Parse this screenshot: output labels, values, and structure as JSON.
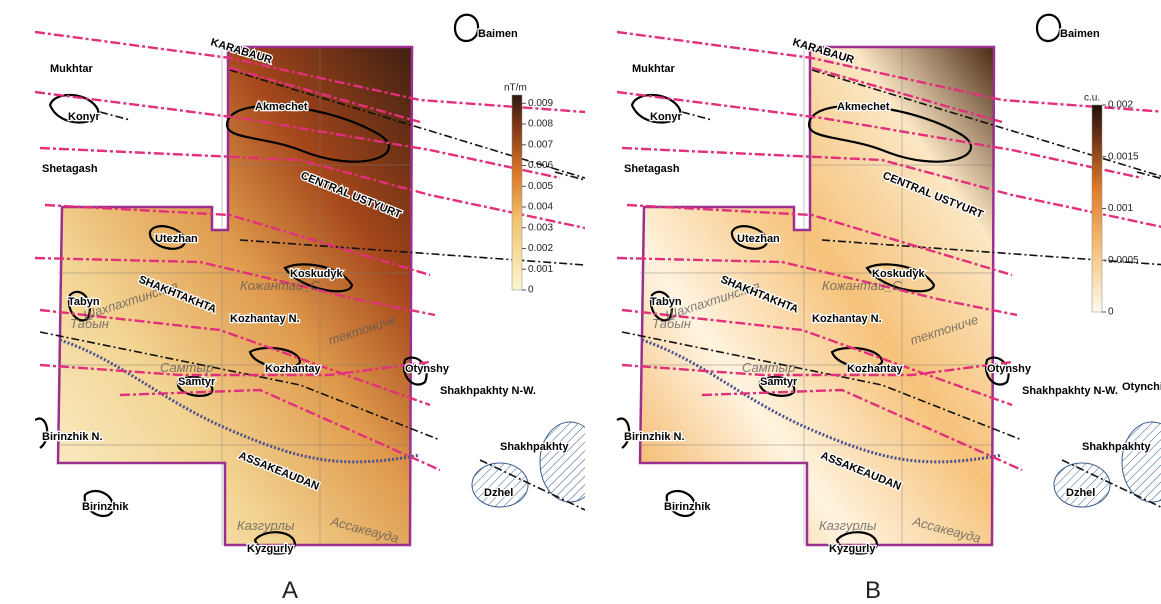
{
  "panels": [
    {
      "label": "A",
      "colorbar": {
        "unit": "nT/m",
        "lim": [
          0,
          0.0094
        ],
        "ticks": [
          0,
          0.001,
          0.002,
          0.003,
          0.004,
          0.005,
          0.006,
          0.007,
          0.008,
          0.009
        ]
      },
      "places": [
        "KARABAUR",
        "Baimen",
        "Mukhtar",
        "Konyr",
        "Akmechet",
        "Shetagash",
        "CENTRAL USTYURT",
        "Utezhan",
        "Koskudyk",
        "SHAKHTAKHTA",
        "Tabyn",
        "Kozhantay N.",
        "Kozhantay",
        "Samtyr",
        "Otynshy",
        "Shakhpakhty N-W.",
        "Birinzhik N.",
        "ASSAKEAUDAN",
        "Shakhpakhty",
        "Dzhel",
        "Birinzhik",
        "Kyzgurly"
      ],
      "russian_labels": [
        "Шахпахтинская",
        "тектониче",
        "Кожантай_С.",
        "Табын",
        "Самтыр",
        "Ассакеауда",
        "Казгурлы"
      ]
    },
    {
      "label": "B",
      "colorbar": {
        "unit": "c.u.",
        "lim": [
          0,
          0.002
        ],
        "ticks": [
          0,
          0.0005,
          0.001,
          0.0015,
          0.002
        ]
      },
      "places": [
        "KARABAUR",
        "Baimen",
        "Mukhtar",
        "Konyr",
        "Akmechet",
        "Shetagash",
        "CENTRAL USTYURT",
        "Utezhan",
        "Koskudyk",
        "SHAKHTAKHTA",
        "Tabyn",
        "Kozhantay N.",
        "Kozhantay",
        "Samtyr",
        "Otynshy",
        "Shakhpakhty N-W.",
        "Birinzhik N.",
        "ASSAKEAUDAN",
        "Shakhpakhty",
        "Dzhel",
        "Birinzhik",
        "Kyzgurly",
        "Otynchi"
      ],
      "russian_labels": [
        "Шахпахтинская",
        "тектониче",
        "Кожантай_С.",
        "Табын",
        "Самтыр",
        "Ассакеауда",
        "Казгурлы"
      ]
    }
  ]
}
